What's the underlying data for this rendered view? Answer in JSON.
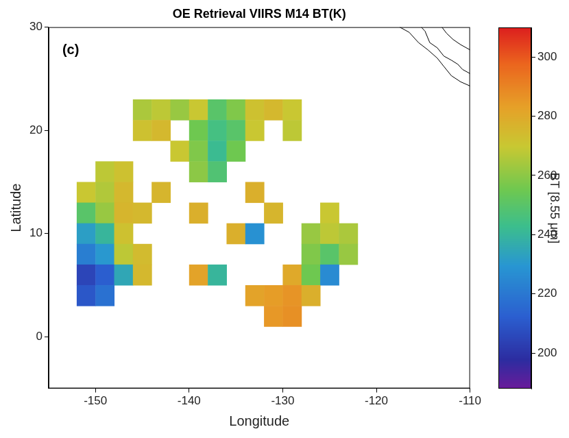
{
  "chart_data": {
    "type": "heatmap",
    "title": "OE Retrieval VIIRS M14 BT(K)",
    "panel_label": "(c)",
    "x_label": "Longitude",
    "y_label": "Latitude",
    "xlim": [
      -155,
      -110
    ],
    "xticks": [
      -150,
      -140,
      -130,
      -120,
      -110
    ],
    "ylim": [
      -5,
      30
    ],
    "yticks": [
      0,
      10,
      20,
      30
    ],
    "grid": false,
    "cells": {
      "x": [
        -151,
        -149,
        -147,
        -145,
        -143,
        -141,
        -139,
        -137,
        -135,
        -133,
        -131,
        -129,
        -127,
        -125,
        -123
      ],
      "y": [
        22,
        20,
        18,
        16,
        14,
        12,
        10,
        8,
        6,
        4,
        2
      ],
      "values": [
        [
          null,
          null,
          null,
          265,
          268,
          262,
          270,
          250,
          258,
          272,
          275,
          270,
          null,
          null,
          null
        ],
        [
          null,
          null,
          null,
          272,
          275,
          null,
          255,
          245,
          250,
          270,
          null,
          268,
          null,
          null,
          null
        ],
        [
          null,
          null,
          null,
          null,
          null,
          270,
          258,
          242,
          255,
          null,
          null,
          null,
          null,
          null,
          null
        ],
        [
          null,
          268,
          272,
          null,
          null,
          null,
          260,
          248,
          null,
          null,
          null,
          null,
          null,
          null,
          null
        ],
        [
          270,
          266,
          275,
          null,
          276,
          null,
          null,
          null,
          null,
          278,
          null,
          null,
          null,
          null,
          null
        ],
        [
          250,
          262,
          276,
          275,
          null,
          null,
          278,
          null,
          null,
          null,
          276,
          null,
          null,
          270,
          null
        ],
        [
          232,
          240,
          272,
          null,
          null,
          null,
          null,
          null,
          278,
          228,
          null,
          null,
          262,
          268,
          265
        ],
        [
          222,
          230,
          268,
          274,
          null,
          null,
          null,
          null,
          null,
          null,
          null,
          null,
          258,
          250,
          262
        ],
        [
          205,
          212,
          235,
          275,
          null,
          null,
          282,
          240,
          null,
          null,
          null,
          280,
          255,
          226,
          null
        ],
        [
          210,
          218,
          null,
          null,
          null,
          null,
          null,
          null,
          null,
          282,
          284,
          286,
          278,
          null,
          null
        ],
        [
          null,
          null,
          null,
          null,
          null,
          null,
          null,
          null,
          null,
          null,
          285,
          287,
          null,
          null,
          null
        ]
      ]
    },
    "colorbar": {
      "label": "BT [8.55 μm]",
      "lim": [
        188,
        310
      ],
      "ticks": [
        200,
        220,
        240,
        260,
        280,
        300
      ]
    },
    "coastlines": [
      {
        "x": [
          -117.5,
          -116.5,
          -115.5,
          -114.5,
          -113.5,
          -112.8,
          -112,
          -111,
          -110
        ],
        "y": [
          30,
          29.5,
          28.5,
          27.8,
          27,
          26.2,
          25.3,
          24.7,
          24.3
        ]
      },
      {
        "x": [
          -115.2,
          -114.8,
          -114.3,
          -113.5,
          -112.8,
          -112,
          -111.3,
          -110.8,
          -110
        ],
        "y": [
          30,
          29.6,
          28.5,
          28,
          27.2,
          26.8,
          26.4,
          25.9,
          25.5
        ]
      },
      {
        "x": [
          -113,
          -112.5,
          -111.8,
          -111,
          -110
        ],
        "y": [
          30,
          29.4,
          28.8,
          28.3,
          27.8
        ]
      }
    ]
  }
}
